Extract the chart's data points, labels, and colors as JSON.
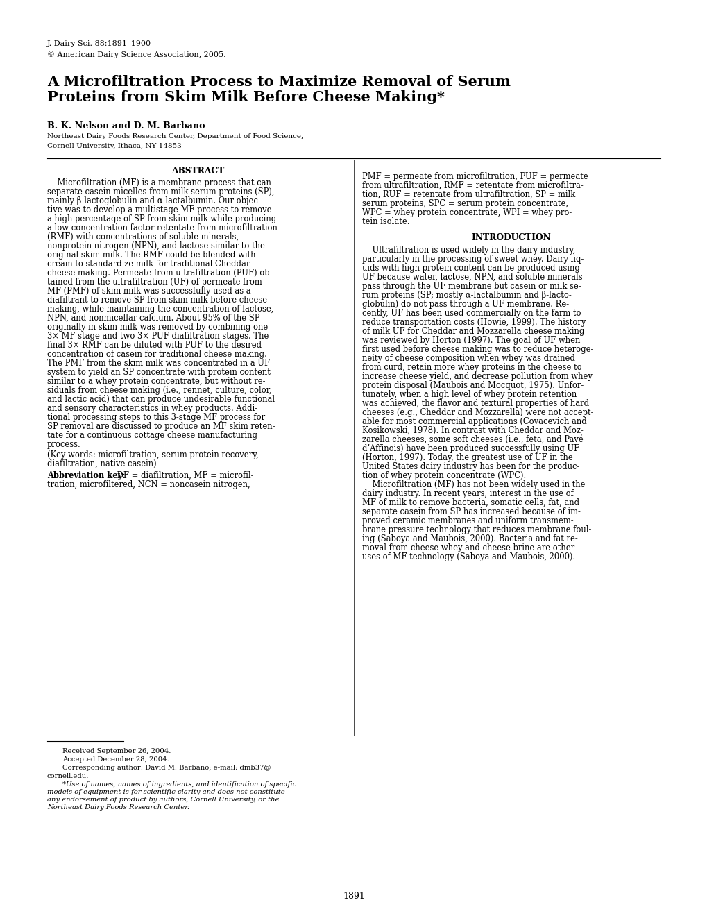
{
  "background_color": "#ffffff",
  "page_width": 10.2,
  "page_height": 13.2,
  "journal_line1": "J. Dairy Sci. 88:1891–1900",
  "journal_line2": "© American Dairy Science Association, 2005.",
  "title_line1": "A Microfiltration Process to Maximize Removal of Serum",
  "title_line2": "Proteins from Skim Milk Before Cheese Making*",
  "authors": "B. K. Nelson and D. M. Barbano",
  "affiliation1": "Northeast Dairy Foods Research Center, Department of Food Science,",
  "affiliation2": "Cornell University, Ithaca, NY 14853",
  "abstract_title": "ABSTRACT",
  "abstract_text_lines": [
    "    Microfiltration (MF) is a membrane process that can",
    "separate casein micelles from milk serum proteins (SP),",
    "mainly β-lactoglobulin and α-lactalbumin. Our objec-",
    "tive was to develop a multistage MF process to remove",
    "a high percentage of SP from skim milk while producing",
    "a low concentration factor retentate from microfiltration",
    "(RMF) with concentrations of soluble minerals,",
    "nonprotein nitrogen (NPN), and lactose similar to the",
    "original skim milk. The RMF could be blended with",
    "cream to standardize milk for traditional Cheddar",
    "cheese making. Permeate from ultrafiltration (PUF) ob-",
    "tained from the ultrafiltration (UF) of permeate from",
    "MF (PMF) of skim milk was successfully used as a",
    "diafiltrant to remove SP from skim milk before cheese",
    "making, while maintaining the concentration of lactose,",
    "NPN, and nonmicellar calcium. About 95% of the SP",
    "originally in skim milk was removed by combining one",
    "3× MF stage and two 3× PUF diafiltration stages. The",
    "final 3× RMF can be diluted with PUF to the desired",
    "concentration of casein for traditional cheese making.",
    "The PMF from the skim milk was concentrated in a UF",
    "system to yield an SP concentrate with protein content",
    "similar to a whey protein concentrate, but without re-",
    "siduals from cheese making (i.e., rennet, culture, color,",
    "and lactic acid) that can produce undesirable functional",
    "and sensory characteristics in whey products. Addi-",
    "tional processing steps to this 3-stage MF process for",
    "SP removal are discussed to produce an MF skim reten-",
    "tate for a continuous cottage cheese manufacturing",
    "process."
  ],
  "keywords_line1": "(Key words: microfiltration, serum protein recovery,",
  "keywords_line2": "diafiltration, native casein)",
  "abbrev_key_bold": "Abbreviation key:",
  "abbrev_key_rest": " DF = diafiltration, MF = microfil-",
  "abbrev_key_line2": "tration, microfiltered, NCN = noncasein nitrogen,",
  "right_abbrev_lines": [
    "PMF = permeate from microfiltration, PUF = permeate",
    "from ultrafiltration, RMF = retentate from microfiltra-",
    "tion, RUF = retentate from ultrafiltration, SP = milk",
    "serum proteins, SPC = serum protein concentrate,",
    "WPC = whey protein concentrate, WPI = whey pro-",
    "tein isolate."
  ],
  "intro_title": "INTRODUCTION",
  "intro_text_lines": [
    "    Ultrafiltration is used widely in the dairy industry,",
    "particularly in the processing of sweet whey. Dairy liq-",
    "uids with high protein content can be produced using",
    "UF because water, lactose, NPN, and soluble minerals",
    "pass through the UF membrane but casein or milk se-",
    "rum proteins (SP; mostly α-lactalbumin and β-lacto-",
    "globulin) do not pass through a UF membrane. Re-",
    "cently, UF has been used commercially on the farm to",
    "reduce transportation costs (Howie, 1999). The history",
    "of milk UF for Cheddar and Mozzarella cheese making",
    "was reviewed by Horton (1997). The goal of UF when",
    "first used before cheese making was to reduce heteroge-",
    "neity of cheese composition when whey was drained",
    "from curd, retain more whey proteins in the cheese to",
    "increase cheese yield, and decrease pollution from whey",
    "protein disposal (Maubois and Mocquot, 1975). Unfor-",
    "tunately, when a high level of whey protein retention",
    "was achieved, the flavor and textural properties of hard",
    "cheeses (e.g., Cheddar and Mozzarella) were not accept-",
    "able for most commercial applications (Covacevich and",
    "Kosikowski, 1978). In contrast with Cheddar and Moz-",
    "zarella cheeses, some soft cheeses (i.e., feta, and Pavé",
    "d’Affinois) have been produced successfully using UF",
    "(Horton, 1997). Today, the greatest use of UF in the",
    "United States dairy industry has been for the produc-",
    "tion of whey protein concentrate (WPC).",
    "    Microfiltration (MF) has not been widely used in the",
    "dairy industry. In recent years, interest in the use of",
    "MF of milk to remove bacteria, somatic cells, fat, and",
    "separate casein from SP has increased because of im-",
    "proved ceramic membranes and uniform transmem-",
    "brane pressure technology that reduces membrane foul-",
    "ing (Saboya and Maubois, 2000). Bacteria and fat re-",
    "moval from cheese whey and cheese brine are other",
    "uses of MF technology (Saboya and Maubois, 2000)."
  ],
  "footnote_received": "Received September 26, 2004.",
  "footnote_accepted": "Accepted December 28, 2004.",
  "footnote_corr": "Corresponding author: David M. Barbano; e-mail: dmb37@",
  "footnote_corr2": "cornell.edu.",
  "footnote_use1": "*Use of names, names of ingredients, and identification of specific",
  "footnote_use2": "models of equipment is for scientific clarity and does not constitute",
  "footnote_use3": "any endorsement of product by authors, Cornell University, or the",
  "footnote_use4": "Northeast Dairy Foods Research Center.",
  "page_number": "1891"
}
